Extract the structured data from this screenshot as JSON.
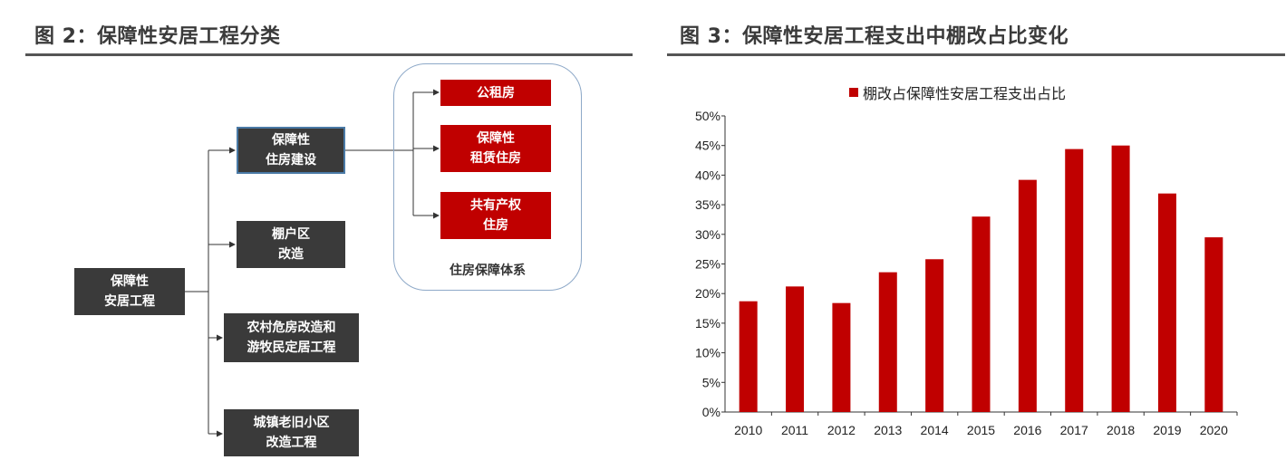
{
  "left_panel": {
    "title": "图 2：保障性安居工程分类",
    "diagram": {
      "root": "保障性\n安居工程",
      "children": [
        "保障性\n住房建设",
        "棚户区\n改造",
        "农村危房改造和\n游牧民定居工程",
        "城镇老旧小区\n改造工程"
      ],
      "housing_types": [
        "公租房",
        "保障性\n租赁住房",
        "共有产权\n住房"
      ],
      "group_label": "住房保障体系"
    }
  },
  "right_panel": {
    "title": "图 3：保障性安居工程支出中棚改占比变化"
  },
  "chart_data": {
    "type": "bar",
    "legend": "棚改占保障性安居工程支出占比",
    "categories": [
      "2010",
      "2011",
      "2012",
      "2013",
      "2014",
      "2015",
      "2016",
      "2017",
      "2018",
      "2019",
      "2020"
    ],
    "series": [
      {
        "name": "棚改占保障性安居工程支出占比",
        "values": [
          18.7,
          21.2,
          18.4,
          23.6,
          25.8,
          33.0,
          39.2,
          44.4,
          45.0,
          36.9,
          29.5
        ]
      }
    ],
    "ylim": [
      0,
      50
    ],
    "yticks": [
      "0%",
      "5%",
      "10%",
      "15%",
      "20%",
      "25%",
      "30%",
      "35%",
      "40%",
      "45%",
      "50%"
    ],
    "legend_position": "top-center",
    "grid": false,
    "bar_color": "#c00000",
    "axis_color": "#333333"
  }
}
